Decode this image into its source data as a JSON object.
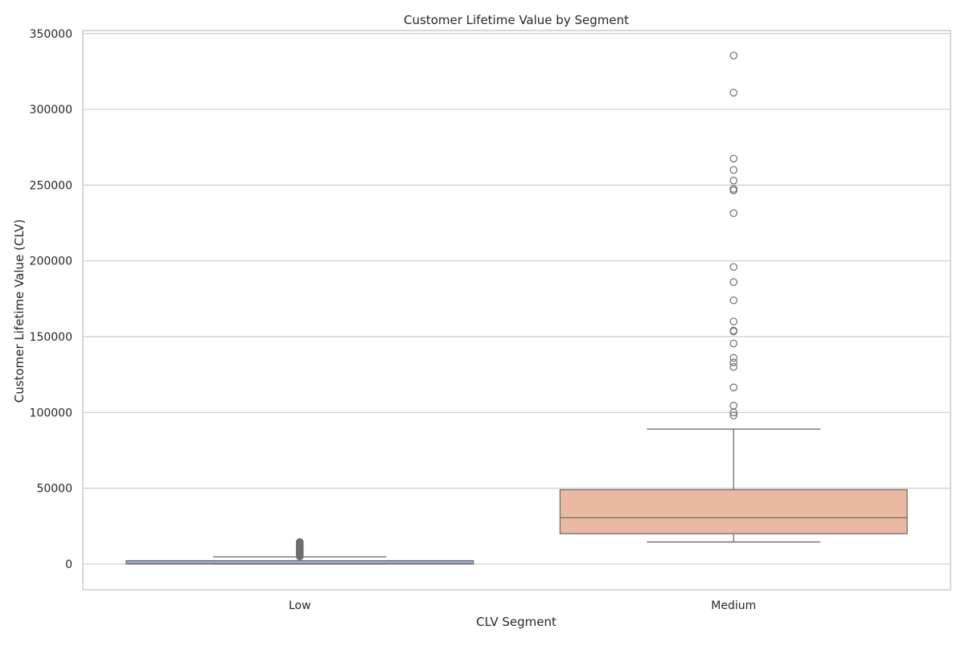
{
  "chart_data": {
    "type": "box",
    "title": "Customer Lifetime Value by Segment",
    "xlabel": "CLV Segment",
    "ylabel": "Customer Lifetime Value (CLV)",
    "categories": [
      "Low",
      "Medium"
    ],
    "ylim": [
      -17000,
      352000
    ],
    "yticks": [
      0,
      50000,
      100000,
      150000,
      200000,
      250000,
      300000,
      350000
    ],
    "ytick_labels": [
      "0",
      "50000",
      "100000",
      "150000",
      "200000",
      "250000",
      "300000",
      "350000"
    ],
    "grid": true,
    "colors": {
      "Low": "#9fb1e8",
      "Medium": "#ebb9a2",
      "line": "#6e6e6e",
      "grid": "#cccccc",
      "spine": "#cccccc"
    },
    "boxes": [
      {
        "category": "Low",
        "whisker_low": 0,
        "q1": 0,
        "median": 300,
        "q3": 2200,
        "whisker_high": 4700,
        "outliers": [
          5000,
          5500,
          6000,
          6500,
          7000,
          7500,
          8000,
          8500,
          9000,
          9500,
          10000,
          10500,
          11000,
          11500,
          12000,
          12500,
          13000,
          13500,
          14000,
          14500
        ]
      },
      {
        "category": "Medium",
        "whisker_low": 14500,
        "q1": 20000,
        "median": 30500,
        "q3": 49000,
        "whisker_high": 89000,
        "outliers": [
          98000,
          100000,
          104500,
          116500,
          130000,
          133000,
          136000,
          145500,
          153500,
          154000,
          160000,
          174000,
          186000,
          196000,
          231500,
          246500,
          247500,
          253000,
          260000,
          267500,
          311000,
          335500
        ]
      }
    ]
  }
}
